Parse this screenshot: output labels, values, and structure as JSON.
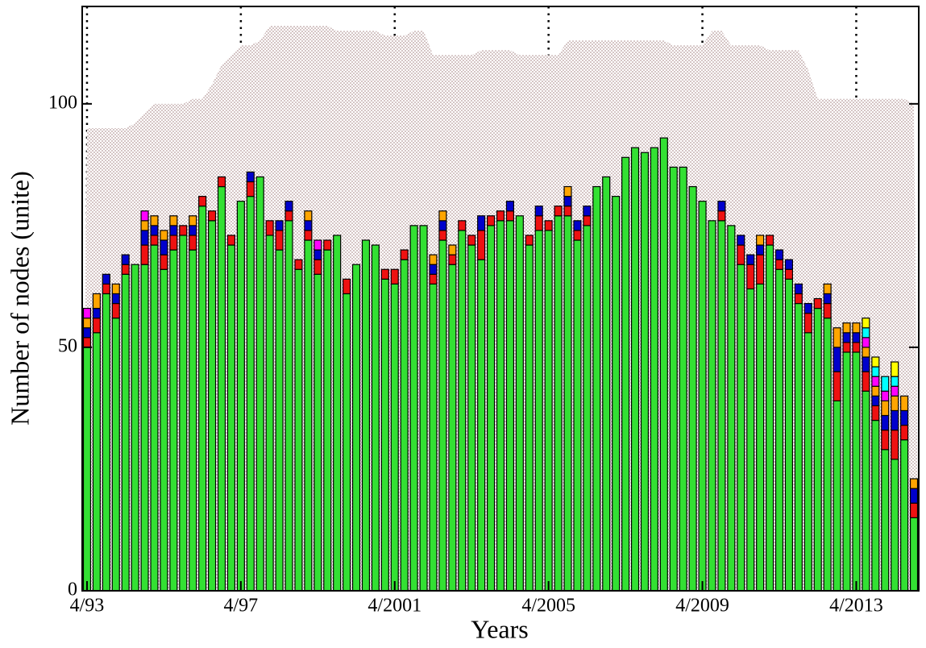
{
  "chart_data": {
    "type": "bar",
    "stacked": true,
    "xlabel": "Years",
    "ylabel": "Number of nodes (unite)",
    "categories": [
      "4/93",
      null,
      null,
      null,
      null,
      null,
      null,
      null,
      null,
      null,
      null,
      null,
      null,
      null,
      null,
      null,
      "4/97",
      null,
      null,
      null,
      null,
      null,
      null,
      null,
      null,
      null,
      null,
      null,
      null,
      null,
      null,
      null,
      "4/2001",
      null,
      null,
      null,
      null,
      null,
      null,
      null,
      null,
      null,
      null,
      null,
      null,
      null,
      null,
      null,
      "4/2005",
      null,
      null,
      null,
      null,
      null,
      null,
      null,
      null,
      null,
      null,
      null,
      null,
      null,
      null,
      null,
      "4/2009",
      null,
      null,
      null,
      null,
      null,
      null,
      null,
      null,
      null,
      null,
      null,
      null,
      null,
      null,
      null,
      "4/2013",
      null,
      null,
      null,
      null,
      null,
      null
    ],
    "ylim": [
      0,
      120
    ],
    "yticks": [
      0,
      50,
      100
    ],
    "grid": true,
    "area": {
      "color": "#b89c9c",
      "values": [
        95,
        95,
        95,
        95,
        95,
        96,
        98,
        100,
        100,
        100,
        100,
        101,
        101,
        104,
        108,
        110,
        112,
        112,
        113,
        116,
        116,
        116,
        116,
        116,
        116,
        116,
        115,
        115,
        115,
        115,
        115,
        114,
        114,
        114,
        115,
        115,
        110,
        110,
        110,
        110,
        110,
        111,
        111,
        111,
        111,
        110,
        110,
        110,
        110,
        110,
        113,
        113,
        113,
        113,
        113,
        113,
        113,
        113,
        113,
        113,
        113,
        112,
        112,
        112,
        112,
        115,
        115,
        112,
        112,
        112,
        112,
        111,
        111,
        111,
        111,
        107,
        101,
        101,
        101,
        101,
        101,
        101,
        101,
        101,
        101,
        101,
        100
      ]
    },
    "series": [
      {
        "color": "#33e033",
        "values": [
          50,
          53,
          61,
          56,
          65,
          67,
          67,
          71,
          66,
          70,
          73,
          70,
          79,
          76,
          83,
          71,
          80,
          81,
          85,
          73,
          70,
          76,
          66,
          72,
          65,
          70,
          73,
          61,
          67,
          72,
          71,
          64,
          63,
          68,
          75,
          75,
          63,
          72,
          67,
          74,
          71,
          68,
          75,
          76,
          76,
          77,
          71,
          74,
          74,
          77,
          77,
          72,
          75,
          83,
          85,
          81,
          89,
          91,
          90,
          91,
          93,
          87,
          87,
          83,
          80,
          76,
          76,
          75,
          67,
          62,
          63,
          71,
          66,
          64,
          59,
          53,
          58,
          56,
          39,
          49,
          49,
          41,
          35,
          29,
          27,
          31,
          15
        ]
      },
      {
        "color": "#ee1111",
        "values": [
          2,
          3,
          2,
          3,
          2,
          0,
          4,
          2,
          3,
          3,
          2,
          3,
          2,
          2,
          2,
          2,
          0,
          3,
          0,
          3,
          4,
          2,
          2,
          2,
          3,
          2,
          0,
          3,
          0,
          0,
          0,
          2,
          3,
          2,
          0,
          0,
          2,
          2,
          2,
          2,
          2,
          6,
          2,
          2,
          2,
          0,
          2,
          3,
          2,
          2,
          2,
          2,
          2,
          0,
          0,
          0,
          0,
          0,
          0,
          0,
          0,
          0,
          0,
          0,
          0,
          0,
          2,
          0,
          4,
          5,
          6,
          2,
          2,
          2,
          2,
          4,
          2,
          3,
          6,
          2,
          2,
          4,
          3,
          4,
          6,
          3,
          3
        ]
      },
      {
        "color": "#0000cc",
        "values": [
          2,
          2,
          2,
          2,
          2,
          0,
          3,
          2,
          3,
          2,
          0,
          2,
          0,
          0,
          0,
          0,
          0,
          2,
          0,
          0,
          2,
          2,
          0,
          2,
          2,
          0,
          0,
          0,
          0,
          0,
          0,
          0,
          0,
          0,
          0,
          0,
          2,
          2,
          0,
          0,
          0,
          3,
          0,
          0,
          2,
          0,
          0,
          2,
          0,
          0,
          2,
          2,
          2,
          0,
          0,
          0,
          0,
          0,
          0,
          0,
          0,
          0,
          0,
          0,
          0,
          0,
          2,
          0,
          2,
          2,
          2,
          0,
          2,
          2,
          2,
          2,
          0,
          2,
          5,
          2,
          2,
          3,
          2,
          3,
          4,
          3,
          3
        ]
      },
      {
        "color": "#ffa500",
        "values": [
          2,
          3,
          0,
          2,
          0,
          0,
          2,
          2,
          2,
          2,
          0,
          2,
          0,
          0,
          0,
          0,
          0,
          0,
          0,
          0,
          0,
          0,
          0,
          2,
          0,
          0,
          0,
          0,
          0,
          0,
          0,
          0,
          0,
          0,
          0,
          0,
          2,
          2,
          2,
          0,
          0,
          0,
          0,
          0,
          0,
          0,
          0,
          0,
          0,
          0,
          2,
          0,
          0,
          0,
          0,
          0,
          0,
          0,
          0,
          0,
          0,
          0,
          0,
          0,
          0,
          0,
          0,
          0,
          0,
          0,
          2,
          0,
          0,
          0,
          0,
          0,
          0,
          2,
          4,
          2,
          2,
          2,
          2,
          3,
          3,
          3,
          2
        ]
      },
      {
        "color": "#ff00ff",
        "values": [
          2,
          0,
          0,
          0,
          0,
          0,
          2,
          0,
          0,
          0,
          0,
          0,
          0,
          0,
          0,
          0,
          0,
          0,
          0,
          0,
          0,
          0,
          0,
          0,
          2,
          0,
          0,
          0,
          0,
          0,
          0,
          0,
          0,
          0,
          0,
          0,
          0,
          0,
          0,
          0,
          0,
          0,
          0,
          0,
          0,
          0,
          0,
          0,
          0,
          0,
          0,
          0,
          0,
          0,
          0,
          0,
          0,
          0,
          0,
          0,
          0,
          0,
          0,
          0,
          0,
          0,
          0,
          0,
          0,
          0,
          0,
          0,
          0,
          0,
          0,
          0,
          0,
          0,
          0,
          0,
          0,
          2,
          2,
          2,
          2,
          0,
          0
        ]
      },
      {
        "color": "#00ffff",
        "values": [
          0,
          0,
          0,
          0,
          0,
          0,
          0,
          0,
          0,
          0,
          0,
          0,
          0,
          0,
          0,
          0,
          0,
          0,
          0,
          0,
          0,
          0,
          0,
          0,
          0,
          0,
          0,
          0,
          0,
          0,
          0,
          0,
          0,
          0,
          0,
          0,
          0,
          0,
          0,
          0,
          0,
          0,
          0,
          0,
          0,
          0,
          0,
          0,
          0,
          0,
          0,
          0,
          0,
          0,
          0,
          0,
          0,
          0,
          0,
          0,
          0,
          0,
          0,
          0,
          0,
          0,
          0,
          0,
          0,
          0,
          0,
          0,
          0,
          0,
          0,
          0,
          0,
          0,
          0,
          0,
          0,
          2,
          2,
          3,
          2,
          0,
          0
        ]
      },
      {
        "color": "#ffff00",
        "values": [
          0,
          0,
          0,
          0,
          0,
          0,
          0,
          0,
          0,
          0,
          0,
          0,
          0,
          0,
          0,
          0,
          0,
          0,
          0,
          0,
          0,
          0,
          0,
          0,
          0,
          0,
          0,
          0,
          0,
          0,
          0,
          0,
          0,
          0,
          0,
          0,
          0,
          0,
          0,
          0,
          0,
          0,
          0,
          0,
          0,
          0,
          0,
          0,
          0,
          0,
          0,
          0,
          0,
          0,
          0,
          0,
          0,
          0,
          0,
          0,
          0,
          0,
          0,
          0,
          0,
          0,
          0,
          0,
          0,
          0,
          0,
          0,
          0,
          0,
          0,
          0,
          0,
          0,
          0,
          0,
          0,
          2,
          2,
          0,
          3,
          0,
          0
        ]
      }
    ]
  }
}
